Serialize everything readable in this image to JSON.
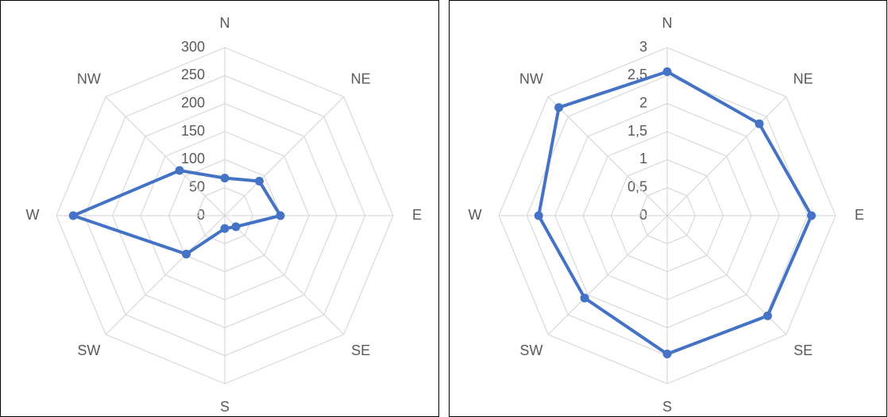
{
  "chart_data": [
    {
      "type": "radar",
      "categories": [
        "N",
        "NE",
        "E",
        "SE",
        "S",
        "SW",
        "W",
        "NW"
      ],
      "values": [
        67,
        87,
        99,
        28,
        23,
        97,
        270,
        114
      ],
      "color": "#4472c4",
      "ylim": [
        0,
        300
      ],
      "yticks": [
        0,
        50,
        100,
        150,
        200,
        250,
        300
      ],
      "grid": true
    },
    {
      "type": "radar",
      "categories": [
        "N",
        "NE",
        "E",
        "SE",
        "S",
        "SW",
        "W",
        "NW"
      ],
      "values": [
        2.57,
        2.32,
        2.57,
        2.53,
        2.47,
        2.08,
        2.29,
        2.73
      ],
      "color": "#4472c4",
      "ylim": [
        0,
        3
      ],
      "yticks": [
        0,
        {
          "value": 0.5,
          "label": "0,5"
        },
        1,
        {
          "value": 1.5,
          "label": "1,5"
        },
        2,
        {
          "value": 2.5,
          "label": "2,5"
        },
        3
      ],
      "grid": true
    }
  ]
}
